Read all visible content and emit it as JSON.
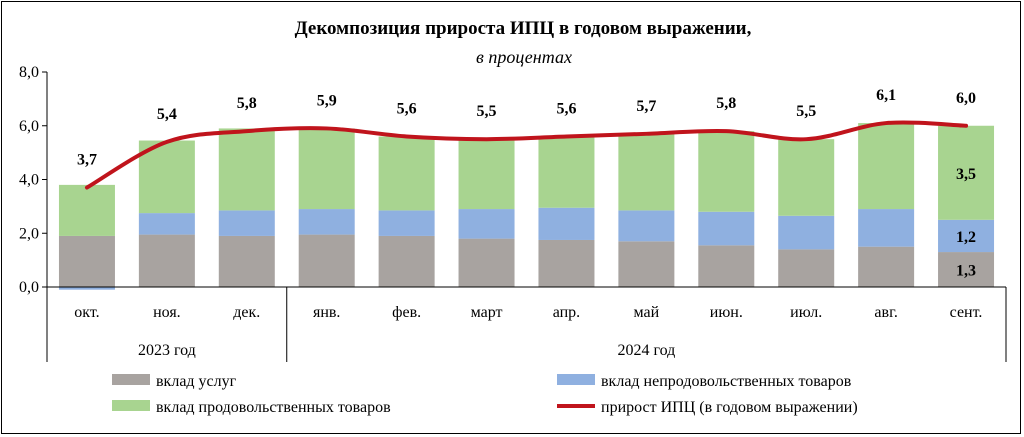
{
  "chart_data": {
    "type": "bar",
    "stacked": true,
    "title": "Декомпозиция прироста ИПЦ  в годовом выражении,",
    "subtitle": "в процентах",
    "categories": [
      "окт.",
      "ноя.",
      "дек.",
      "янв.",
      "фев.",
      "март",
      "апр.",
      "май",
      "июн.",
      "июл.",
      "авг.",
      "сент."
    ],
    "groups": [
      {
        "label": "2023 год",
        "start": 0,
        "end": 2
      },
      {
        "label": "2024 год",
        "start": 3,
        "end": 11
      }
    ],
    "ylim": [
      0,
      8
    ],
    "yticks": [
      "0,0",
      "2,0",
      "4,0",
      "6,0",
      "8,0"
    ],
    "ytick_values": [
      0,
      2,
      4,
      6,
      8
    ],
    "series": [
      {
        "name": "вклад услуг",
        "color": "#a8a3a0",
        "values": [
          1.9,
          1.95,
          1.9,
          1.95,
          1.9,
          1.8,
          1.75,
          1.7,
          1.55,
          1.4,
          1.5,
          1.3
        ]
      },
      {
        "name": "вклад непродовольственных товаров",
        "color": "#8fb0e0",
        "values": [
          -0.1,
          0.8,
          0.95,
          0.95,
          0.95,
          1.1,
          1.2,
          1.15,
          1.25,
          1.25,
          1.4,
          1.2
        ]
      },
      {
        "name": "вклад продовольственных товаров",
        "color": "#a8d490",
        "values": [
          1.9,
          2.7,
          3.05,
          3.0,
          2.75,
          2.6,
          2.65,
          2.85,
          3.0,
          2.85,
          3.2,
          3.5
        ]
      }
    ],
    "line": {
      "name": "прирост ИПЦ (в годовом выражении)",
      "color": "#c0141c",
      "values": [
        3.7,
        5.4,
        5.8,
        5.9,
        5.6,
        5.5,
        5.6,
        5.7,
        5.8,
        5.5,
        6.1,
        6.0
      ],
      "labels": [
        "3,7",
        "5,4",
        "5,8",
        "5,9",
        "5,6",
        "5,5",
        "5,6",
        "5,7",
        "5,8",
        "5,5",
        "6,1",
        "6,0"
      ]
    },
    "inner_labels": {
      "index": 11,
      "services": "1,3",
      "nonfood": "1,2",
      "food": "3,5"
    },
    "legend": {
      "position": "bottom"
    }
  }
}
